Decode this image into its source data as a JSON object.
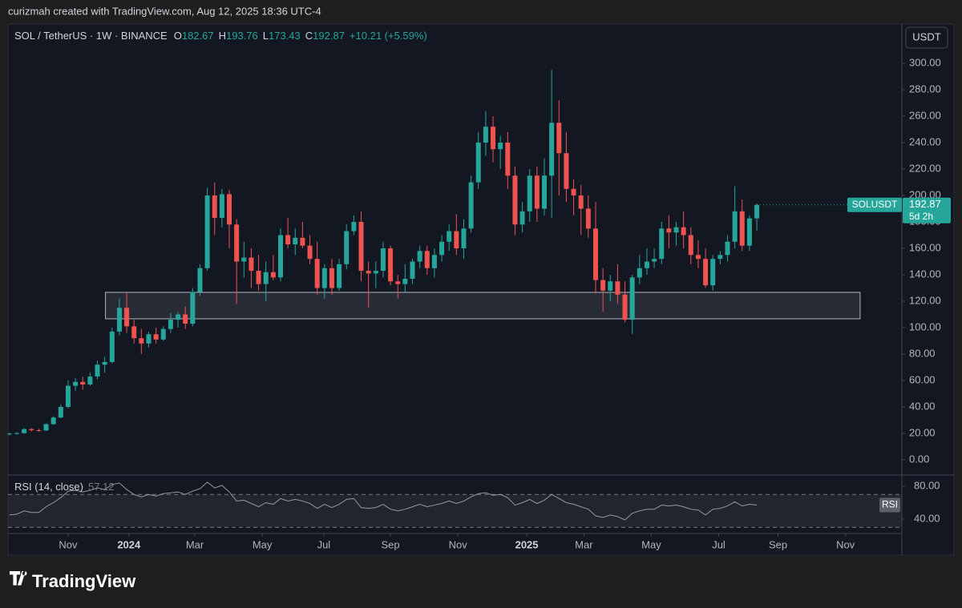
{
  "header": "curizmah created with TradingView.com, Aug 12, 2025 18:36 UTC-4",
  "footer": "TradingView",
  "chart_data": {
    "type": "candlestick",
    "symbol": "SOL / TetherUS · 1W · BINANCE",
    "change": "+10.21 (+5.59%)",
    "currency": "USDT",
    "price_tag": "SOLUSDT",
    "countdown": "5d 2h",
    "up_color": "#26a69a",
    "down_color": "#ef5350",
    "open": [
      19.5,
      19.8,
      20.2,
      23.2,
      22.4,
      22.2,
      27,
      32,
      40,
      56,
      59,
      57,
      63,
      72,
      74,
      97,
      115,
      101,
      92,
      88,
      95,
      91,
      99,
      106,
      110,
      103,
      127,
      145,
      200,
      183,
      201,
      178,
      150,
      153,
      143,
      133,
      142,
      138,
      170,
      163,
      168,
      162,
      152,
      130,
      145,
      130,
      148,
      173,
      180,
      143,
      141,
      143,
      160,
      135,
      133,
      137,
      150,
      158,
      145,
      155,
      165,
      173,
      160,
      175,
      210,
      240,
      252,
      235,
      240,
      215,
      178,
      188,
      215,
      190,
      215,
      255,
      232,
      205,
      200,
      190,
      175,
      136,
      128,
      135,
      125,
      106,
      138,
      145,
      150,
      152,
      175,
      172,
      176,
      170,
      155,
      152,
      132,
      152,
      155,
      165,
      188,
      162,
      182.67
    ],
    "high": [
      20.5,
      21,
      24,
      24,
      23.5,
      27.5,
      33,
      42,
      60,
      62,
      63,
      66,
      75,
      78,
      100,
      122,
      126,
      106,
      99,
      97,
      100,
      101,
      111,
      112,
      116,
      130,
      148,
      206,
      210,
      205,
      204,
      182,
      165,
      160,
      155,
      150,
      155,
      175,
      183,
      175,
      180,
      170,
      165,
      148,
      152,
      152,
      178,
      185,
      188,
      150,
      150,
      165,
      162,
      140,
      148,
      152,
      162,
      162,
      160,
      170,
      178,
      186,
      182,
      215,
      248,
      264,
      260,
      245,
      248,
      222,
      195,
      220,
      222,
      228,
      295,
      272,
      248,
      212,
      208,
      200,
      195,
      145,
      140,
      148,
      135,
      140,
      155,
      160,
      160,
      180,
      185,
      180,
      188,
      176,
      166,
      160,
      155,
      158,
      170,
      207,
      197,
      185,
      193.76
    ],
    "low": [
      18.5,
      19,
      19.8,
      21.5,
      21.3,
      21.8,
      26.5,
      31.5,
      39,
      52,
      53,
      56,
      61,
      66,
      73,
      94,
      96,
      88,
      80,
      85,
      88,
      90,
      96,
      100,
      99,
      101,
      124,
      143,
      170,
      176,
      160,
      118,
      138,
      130,
      128,
      120,
      136,
      135,
      160,
      155,
      160,
      148,
      125,
      122,
      125,
      128,
      144,
      170,
      135,
      115,
      130,
      138,
      132,
      122,
      127,
      133,
      145,
      140,
      138,
      150,
      158,
      155,
      152,
      172,
      205,
      230,
      225,
      220,
      205,
      170,
      172,
      180,
      180,
      185,
      183,
      200,
      195,
      185,
      170,
      168,
      126,
      112,
      120,
      118,
      104,
      95,
      133,
      140,
      145,
      148,
      160,
      162,
      160,
      148,
      145,
      130,
      128,
      148,
      150,
      160,
      158,
      158,
      173.43
    ],
    "close": [
      19.8,
      20.2,
      23.2,
      22.4,
      22.2,
      27,
      32,
      40,
      56,
      59,
      57,
      63,
      72,
      74,
      97,
      115,
      101,
      92,
      88,
      95,
      91,
      99,
      106,
      110,
      103,
      127,
      145,
      200,
      183,
      201,
      178,
      150,
      153,
      143,
      133,
      142,
      138,
      170,
      163,
      168,
      162,
      152,
      130,
      145,
      130,
      148,
      173,
      180,
      143,
      141,
      143,
      160,
      135,
      133,
      137,
      150,
      158,
      145,
      155,
      165,
      173,
      160,
      175,
      210,
      240,
      252,
      235,
      240,
      215,
      178,
      188,
      215,
      190,
      215,
      255,
      232,
      205,
      200,
      190,
      175,
      136,
      128,
      135,
      125,
      106,
      138,
      145,
      150,
      152,
      175,
      172,
      176,
      170,
      155,
      152,
      132,
      152,
      155,
      165,
      188,
      162,
      182.67,
      192.87
    ],
    "xlim": [
      -0.2,
      121.8
    ],
    "xticks": [
      {
        "value": 8.0,
        "label": "Nov"
      },
      {
        "value": 16.3,
        "label": "2024"
      },
      {
        "value": 25.3,
        "label": "Mar"
      },
      {
        "value": 34.5,
        "label": "May"
      },
      {
        "value": 42.9,
        "label": "Jul"
      },
      {
        "value": 52.0,
        "label": "Sep"
      },
      {
        "value": 61.2,
        "label": "Nov"
      },
      {
        "value": 70.6,
        "label": "2025"
      },
      {
        "value": 78.4,
        "label": "Mar"
      },
      {
        "value": 87.6,
        "label": "May"
      },
      {
        "value": 96.8,
        "label": "Jul"
      },
      {
        "value": 104.9,
        "label": "Sep"
      },
      {
        "value": 114.1,
        "label": "Nov"
      }
    ],
    "ylim": [
      -10.9,
      329.7
    ],
    "yticks": [
      {
        "value": 0,
        "label": "0.00"
      },
      {
        "value": 20,
        "label": "20.00"
      },
      {
        "value": 40,
        "label": "40.00"
      },
      {
        "value": 60,
        "label": "60.00"
      },
      {
        "value": 80,
        "label": "80.00"
      },
      {
        "value": 100,
        "label": "100.00"
      },
      {
        "value": 120,
        "label": "120.00"
      },
      {
        "value": 140,
        "label": "140.00"
      },
      {
        "value": 160,
        "label": "160.00"
      },
      {
        "value": 180,
        "label": "180.00"
      },
      {
        "value": 200,
        "label": "200.00"
      },
      {
        "value": 220,
        "label": "220.00"
      },
      {
        "value": 240,
        "label": "240.00"
      },
      {
        "value": 260,
        "label": "260.00"
      },
      {
        "value": 280,
        "label": "280.00"
      },
      {
        "value": 300,
        "label": "300.00"
      }
    ],
    "zone": {
      "from": 13.1,
      "to": 116.1,
      "low": 106.7,
      "high": 126.7
    },
    "rsi": {
      "name": "RSI (14, close)",
      "tag": "RSI",
      "color": "#9598a1",
      "values": [
        45,
        46,
        50,
        48,
        48,
        55,
        60,
        66,
        74,
        75,
        73,
        75,
        78,
        76,
        82,
        84,
        76,
        70,
        67,
        70,
        68,
        71,
        72,
        73,
        70,
        74,
        77,
        85,
        78,
        81,
        73,
        62,
        63,
        59,
        55,
        60,
        58,
        65,
        62,
        64,
        62,
        59,
        53,
        58,
        54,
        58,
        64,
        65,
        54,
        53,
        54,
        58,
        52,
        50,
        52,
        55,
        58,
        55,
        57,
        59,
        62,
        59,
        62,
        67,
        71,
        72,
        69,
        70,
        66,
        57,
        60,
        64,
        59,
        63,
        70,
        65,
        60,
        58,
        55,
        52,
        44,
        42,
        45,
        43,
        39,
        47,
        50,
        52,
        52,
        57,
        56,
        57,
        55,
        52,
        51,
        45,
        52,
        53,
        56,
        61,
        56,
        58,
        57.12
      ],
      "ylim": [
        23.4,
        91.7
      ],
      "yticks": [
        {
          "value": 40,
          "label": "40.00"
        },
        {
          "value": 80,
          "label": "80.00"
        }
      ],
      "bands": [
        30,
        70
      ]
    }
  }
}
